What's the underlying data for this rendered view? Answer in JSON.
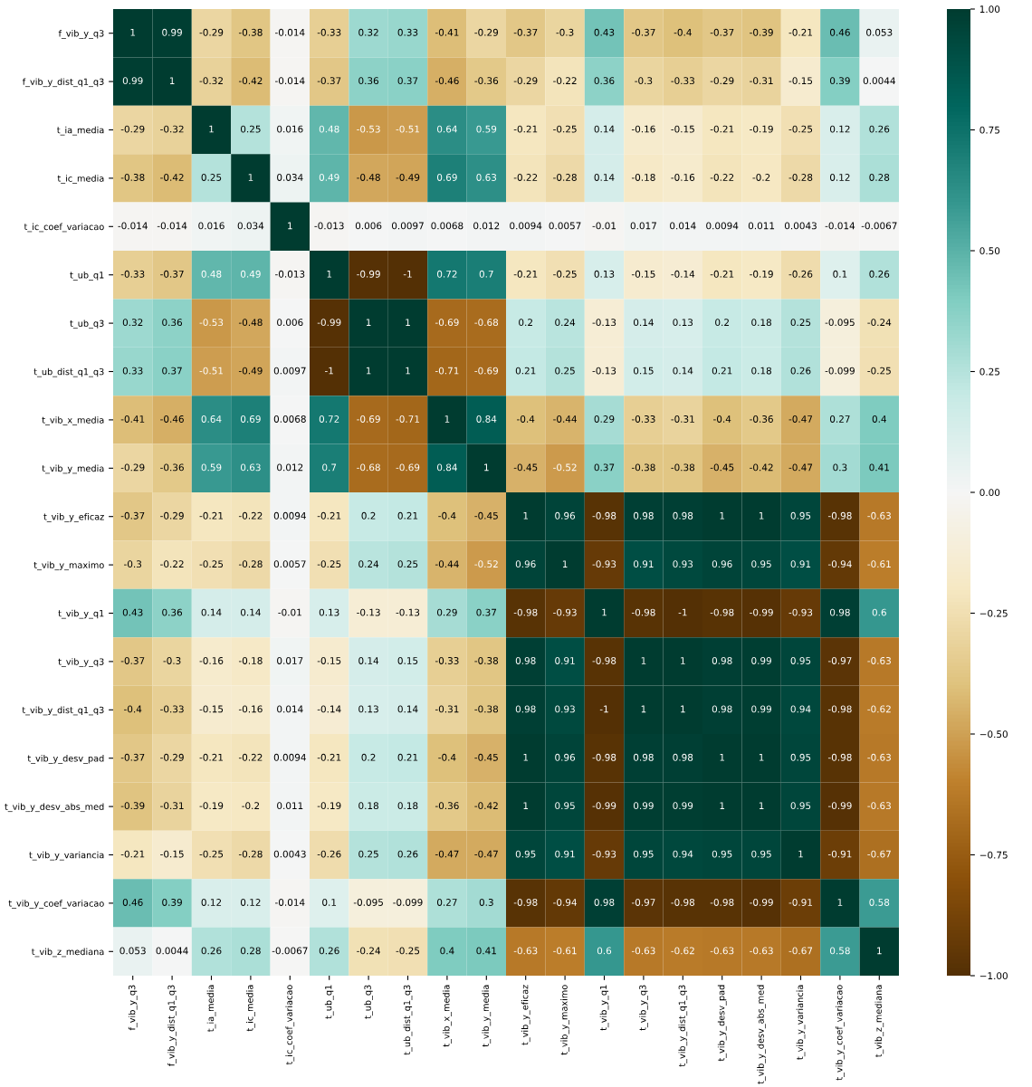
{
  "chart_data": {
    "type": "heatmap",
    "categories": [
      "f_vib_y_q3",
      "f_vib_y_dist_q1_q3",
      "t_ia_media",
      "t_ic_media",
      "t_ic_coef_variacao",
      "t_ub_q1",
      "t_ub_q3",
      "t_ub_dist_q1_q3",
      "t_vib_x_media",
      "t_vib_y_media",
      "t_vib_y_eficaz",
      "t_vib_y_maximo",
      "t_vib_y_q1",
      "t_vib_y_q3",
      "t_vib_y_dist_q1_q3",
      "t_vib_y_desv_pad",
      "t_vib_y_desv_abs_med",
      "t_vib_y_variancia",
      "t_vib_y_coef_variacao",
      "t_vib_z_mediana"
    ],
    "y_categories": [
      "f_vib_y_q3",
      "f_vib_y_dist_q1_q3",
      "t_ia_media",
      "t_ic_media",
      "t_ic_coef_variacao",
      "t_ub_q1",
      "t_ub_q3",
      "t_ub_dist_q1_q3",
      "t_vib_x_media",
      "t_vib_y_media",
      "t_vib_y_eficaz",
      "t_vib_y_maximo",
      "t_vib_y_q1",
      "t_vib_y_q3",
      "t_vib_y_dist_q1_q3",
      "t_vib_y_desv_pad",
      "t_vib_y_desv_abs_med",
      "t_vib_y_variancia",
      "t_vib_y_coef_variacao",
      "t_vib_z_mediana"
    ],
    "cells": [
      [
        1,
        0.99,
        -0.29,
        -0.38,
        -0.014,
        -0.33,
        0.32,
        0.33,
        -0.41,
        -0.29,
        -0.37,
        -0.3,
        0.43,
        -0.37,
        -0.4,
        -0.37,
        -0.39,
        -0.21,
        0.46,
        0.053
      ],
      [
        0.99,
        1,
        -0.32,
        -0.42,
        -0.014,
        -0.37,
        0.36,
        0.37,
        -0.46,
        -0.36,
        -0.29,
        -0.22,
        0.36,
        -0.3,
        -0.33,
        -0.29,
        -0.31,
        -0.15,
        0.39,
        0.0044
      ],
      [
        -0.29,
        -0.32,
        1,
        0.25,
        0.016,
        0.48,
        -0.53,
        -0.51,
        0.64,
        0.59,
        -0.21,
        -0.25,
        0.14,
        -0.16,
        -0.15,
        -0.21,
        -0.19,
        -0.25,
        0.12,
        0.26
      ],
      [
        -0.38,
        -0.42,
        0.25,
        1,
        0.034,
        0.49,
        -0.48,
        -0.49,
        0.69,
        0.63,
        -0.22,
        -0.28,
        0.14,
        -0.18,
        -0.16,
        -0.22,
        -0.2,
        -0.28,
        0.12,
        0.28
      ],
      [
        -0.014,
        -0.014,
        0.016,
        0.034,
        1,
        -0.013,
        0.006,
        0.0097,
        0.0068,
        0.012,
        0.0094,
        0.0057,
        -0.01,
        0.017,
        0.014,
        0.0094,
        0.011,
        0.0043,
        -0.014,
        -0.0067
      ],
      [
        -0.33,
        -0.37,
        0.48,
        0.49,
        -0.013,
        1,
        -0.99,
        -1,
        0.72,
        0.7,
        -0.21,
        -0.25,
        0.13,
        -0.15,
        -0.14,
        -0.21,
        -0.19,
        -0.26,
        0.1,
        0.26
      ],
      [
        0.32,
        0.36,
        -0.53,
        -0.48,
        0.006,
        -0.99,
        1,
        1,
        -0.69,
        -0.68,
        0.2,
        0.24,
        -0.13,
        0.14,
        0.13,
        0.2,
        0.18,
        0.25,
        -0.095,
        -0.24
      ],
      [
        0.33,
        0.37,
        -0.51,
        -0.49,
        0.0097,
        -1,
        1,
        1,
        -0.71,
        -0.69,
        0.21,
        0.25,
        -0.13,
        0.15,
        0.14,
        0.21,
        0.18,
        0.26,
        -0.099,
        -0.25
      ],
      [
        -0.41,
        -0.46,
        0.64,
        0.69,
        0.0068,
        0.72,
        -0.69,
        -0.71,
        1,
        0.84,
        -0.4,
        -0.44,
        0.29,
        -0.33,
        -0.31,
        -0.4,
        -0.36,
        -0.47,
        0.27,
        0.4
      ],
      [
        -0.29,
        -0.36,
        0.59,
        0.63,
        0.012,
        0.7,
        -0.68,
        -0.69,
        0.84,
        1,
        -0.45,
        -0.52,
        0.37,
        -0.38,
        -0.38,
        -0.45,
        -0.42,
        -0.47,
        0.3,
        0.41
      ],
      [
        -0.37,
        -0.29,
        -0.21,
        -0.22,
        0.0094,
        -0.21,
        0.2,
        0.21,
        -0.4,
        -0.45,
        1,
        0.96,
        -0.98,
        0.98,
        0.98,
        1,
        1,
        0.95,
        -0.98,
        -0.63
      ],
      [
        -0.3,
        -0.22,
        -0.25,
        -0.28,
        0.0057,
        -0.25,
        0.24,
        0.25,
        -0.44,
        -0.52,
        0.96,
        1,
        -0.93,
        0.91,
        0.93,
        0.96,
        0.95,
        0.91,
        -0.94,
        -0.61
      ],
      [
        0.43,
        0.36,
        0.14,
        0.14,
        -0.01,
        0.13,
        -0.13,
        -0.13,
        0.29,
        0.37,
        -0.98,
        -0.93,
        1,
        -0.98,
        -1,
        -0.98,
        -0.99,
        -0.93,
        0.98,
        0.6
      ],
      [
        -0.37,
        -0.3,
        -0.16,
        -0.18,
        0.017,
        -0.15,
        0.14,
        0.15,
        -0.33,
        -0.38,
        0.98,
        0.91,
        -0.98,
        1,
        1,
        0.98,
        0.99,
        0.95,
        -0.97,
        -0.63
      ],
      [
        -0.4,
        -0.33,
        -0.15,
        -0.16,
        0.014,
        -0.14,
        0.13,
        0.14,
        -0.31,
        -0.38,
        0.98,
        0.93,
        -1,
        1,
        1,
        0.98,
        0.99,
        0.94,
        -0.98,
        -0.62
      ],
      [
        -0.37,
        -0.29,
        -0.21,
        -0.22,
        0.0094,
        -0.21,
        0.2,
        0.21,
        -0.4,
        -0.45,
        1,
        0.96,
        -0.98,
        0.98,
        0.98,
        1,
        1,
        0.95,
        -0.98,
        -0.63
      ],
      [
        -0.39,
        -0.31,
        -0.19,
        -0.2,
        0.011,
        -0.19,
        0.18,
        0.18,
        -0.36,
        -0.42,
        1,
        0.95,
        -0.99,
        0.99,
        0.99,
        1,
        1,
        0.95,
        -0.99,
        -0.63
      ],
      [
        -0.21,
        -0.15,
        -0.25,
        -0.28,
        0.0043,
        -0.26,
        0.25,
        0.26,
        -0.47,
        -0.47,
        0.95,
        0.91,
        -0.93,
        0.95,
        0.94,
        0.95,
        0.95,
        1,
        -0.91,
        -0.67
      ],
      [
        0.46,
        0.39,
        0.12,
        0.12,
        -0.014,
        0.1,
        -0.095,
        -0.099,
        0.27,
        0.3,
        -0.98,
        -0.94,
        0.98,
        -0.97,
        -0.98,
        -0.98,
        -0.99,
        -0.91,
        1,
        0.58
      ],
      [
        0.053,
        0.0044,
        0.26,
        0.28,
        -0.0067,
        0.26,
        -0.24,
        -0.25,
        0.4,
        0.41,
        -0.63,
        -0.61,
        0.6,
        -0.63,
        -0.62,
        -0.63,
        -0.63,
        -0.67,
        0.58,
        1
      ]
    ],
    "data_labels": true,
    "clim": [
      -1,
      1
    ],
    "cticks": [
      {
        "value": -1,
        "label": "−1.00"
      },
      {
        "value": -0.75,
        "label": "−0.75"
      },
      {
        "value": -0.5,
        "label": "−0.50"
      },
      {
        "value": -0.25,
        "label": "−0.25"
      },
      {
        "value": 0,
        "label": "0.00"
      },
      {
        "value": 0.25,
        "label": "0.25"
      },
      {
        "value": 0.5,
        "label": "0.50"
      },
      {
        "value": 0.75,
        "label": "0.75"
      },
      {
        "value": 1,
        "label": "1.00"
      }
    ]
  }
}
